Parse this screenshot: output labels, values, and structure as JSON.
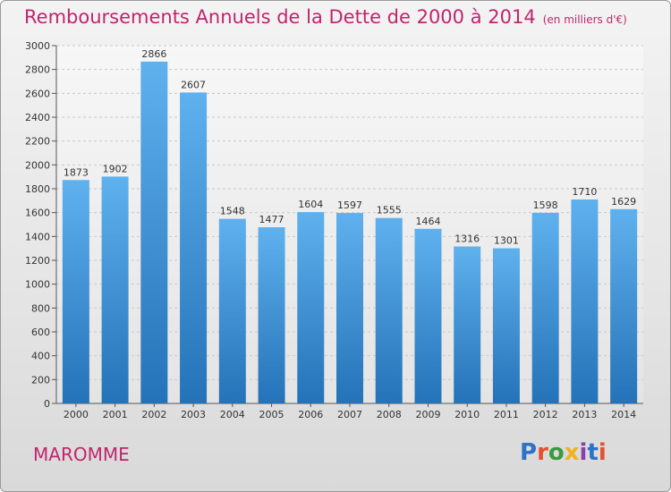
{
  "title": "Remboursements Annuels de la Dette de 2000 à 2014",
  "subtitle": "(en milliers d'€)",
  "city": "MAROMME",
  "logo": {
    "text": "Proxiti",
    "colors": [
      "#2b73c8",
      "#e8502a",
      "#3b9a3b",
      "#f2b21c",
      "#8b3fa8",
      "#2b73c8",
      "#e8502a"
    ]
  },
  "colors": {
    "accent": "#c0256d",
    "bar_top": "#5fb1ee",
    "bar_bottom": "#2472b8"
  },
  "chart_data": {
    "type": "bar",
    "title": "Remboursements Annuels de la Dette de 2000 à 2014",
    "categories": [
      "2000",
      "2001",
      "2002",
      "2003",
      "2004",
      "2005",
      "2006",
      "2007",
      "2008",
      "2009",
      "2010",
      "2011",
      "2012",
      "2013",
      "2014"
    ],
    "values": [
      1873,
      1902,
      2866,
      2607,
      1548,
      1477,
      1604,
      1597,
      1555,
      1464,
      1316,
      1301,
      1598,
      1710,
      1629
    ],
    "ylim": [
      0,
      3000
    ],
    "yticks": [
      0,
      200,
      400,
      600,
      800,
      1000,
      1200,
      1400,
      1600,
      1800,
      2000,
      2200,
      2400,
      2600,
      2800,
      3000
    ],
    "grid": true,
    "legend": "none"
  }
}
